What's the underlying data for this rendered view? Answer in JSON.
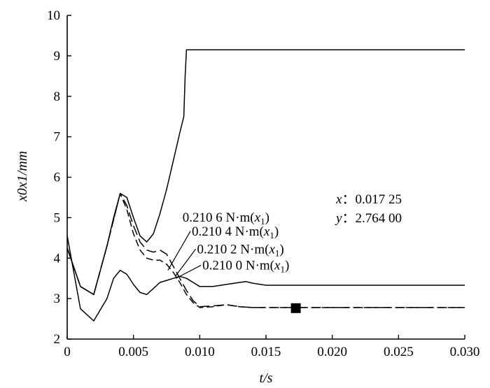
{
  "chart_data": {
    "type": "line",
    "title": "",
    "xlabel": "t/s",
    "ylabel": "x0x1/mm",
    "xlim": [
      0,
      0.03
    ],
    "ylim": [
      2,
      10
    ],
    "x_ticks": [
      0,
      0.005,
      0.01,
      0.015,
      0.02,
      0.025,
      0.03
    ],
    "x_tick_labels": [
      "0",
      "0.005",
      "0.010",
      "0.015",
      "0.020",
      "0.025",
      "0.030"
    ],
    "y_ticks": [
      2,
      3,
      4,
      5,
      6,
      7,
      8,
      9,
      10
    ],
    "y_tick_labels": [
      "2",
      "3",
      "4",
      "5",
      "6",
      "7",
      "8",
      "9",
      "10"
    ],
    "grid": false,
    "series": [
      {
        "name": "0.210 6 N·m(x1)",
        "x": [
          0,
          0.001,
          0.002,
          0.003,
          0.0035,
          0.004,
          0.0045,
          0.005,
          0.0055,
          0.006,
          0.0065,
          0.007,
          0.0075,
          0.008,
          0.0085,
          0.0088,
          0.0089,
          0.009,
          0.012,
          0.015,
          0.02,
          0.025,
          0.03
        ],
        "y": [
          4.25,
          3.3,
          3.1,
          4.3,
          5.0,
          5.6,
          5.5,
          5.0,
          4.55,
          4.4,
          4.6,
          5.1,
          5.7,
          6.4,
          7.1,
          7.5,
          8.5,
          9.15,
          9.15,
          9.15,
          9.15,
          9.15,
          9.15
        ]
      },
      {
        "name": "0.210 4 N·m(x1)",
        "x": [
          0,
          0.001,
          0.002,
          0.003,
          0.004,
          0.0045,
          0.005,
          0.0055,
          0.006,
          0.0065,
          0.007,
          0.0075,
          0.008,
          0.0085,
          0.009,
          0.0095,
          0.01,
          0.011,
          0.012,
          0.013,
          0.014,
          0.015,
          0.02,
          0.025,
          0.03
        ],
        "y": [
          4.25,
          3.3,
          3.1,
          4.3,
          5.6,
          5.3,
          4.8,
          4.4,
          4.2,
          4.15,
          4.2,
          4.1,
          3.8,
          3.5,
          3.2,
          2.95,
          2.8,
          2.82,
          2.85,
          2.8,
          2.78,
          2.78,
          2.78,
          2.78,
          2.78
        ]
      },
      {
        "name": "0.210 2 N·m(x1)",
        "x": [
          0,
          0.001,
          0.002,
          0.003,
          0.004,
          0.0045,
          0.005,
          0.0055,
          0.006,
          0.0065,
          0.007,
          0.0075,
          0.008,
          0.0085,
          0.009,
          0.0095,
          0.01,
          0.011,
          0.012,
          0.013,
          0.014,
          0.015,
          0.02,
          0.025,
          0.03
        ],
        "y": [
          4.25,
          3.3,
          3.1,
          4.3,
          5.6,
          5.2,
          4.6,
          4.2,
          4.0,
          3.95,
          3.95,
          3.85,
          3.65,
          3.4,
          3.1,
          2.9,
          2.78,
          2.8,
          2.85,
          2.8,
          2.78,
          2.78,
          2.78,
          2.78,
          2.78
        ]
      },
      {
        "name": "0.210 0 N·m(x1)",
        "x": [
          0,
          0.001,
          0.002,
          0.003,
          0.0035,
          0.004,
          0.0045,
          0.005,
          0.0055,
          0.006,
          0.0065,
          0.007,
          0.0075,
          0.008,
          0.0085,
          0.009,
          0.0095,
          0.01,
          0.011,
          0.012,
          0.013,
          0.0135,
          0.014,
          0.015,
          0.02,
          0.025,
          0.03
        ],
        "y": [
          4.55,
          2.75,
          2.45,
          3.0,
          3.5,
          3.7,
          3.6,
          3.35,
          3.15,
          3.1,
          3.25,
          3.4,
          3.45,
          3.5,
          3.55,
          3.5,
          3.4,
          3.3,
          3.3,
          3.35,
          3.4,
          3.42,
          3.38,
          3.33,
          3.33,
          3.33,
          3.33
        ]
      }
    ],
    "annotations": {
      "curve_labels": [
        {
          "text": "0.210 6 N·m(",
          "var": "x",
          "sub": "1",
          "tail": ")",
          "tx": 0.0087,
          "ty": 4.9,
          "ax": 0.0086,
          "ay": 5.0
        },
        {
          "text": "0.210 4 N·m(",
          "var": "x",
          "sub": "1",
          "tail": ")",
          "tx": 0.0094,
          "ty": 4.56,
          "ax": 0.0076,
          "ay": 3.7
        },
        {
          "text": "0.210 2 N·m(",
          "var": "x",
          "sub": "1",
          "tail": ")",
          "tx": 0.0098,
          "ty": 4.12,
          "ax": 0.0082,
          "ay": 3.57
        },
        {
          "text": "0.210 0 N·m(",
          "var": "x",
          "sub": "1",
          "tail": ")",
          "tx": 0.0102,
          "ty": 3.72,
          "ax": 0.0082,
          "ay": 3.5
        }
      ],
      "cursor": {
        "x_name": "x",
        "x_value": "0.017 25",
        "y_name": "y",
        "y_value": "2.764 00",
        "point_x": 0.01725,
        "point_y": 2.764
      }
    }
  }
}
